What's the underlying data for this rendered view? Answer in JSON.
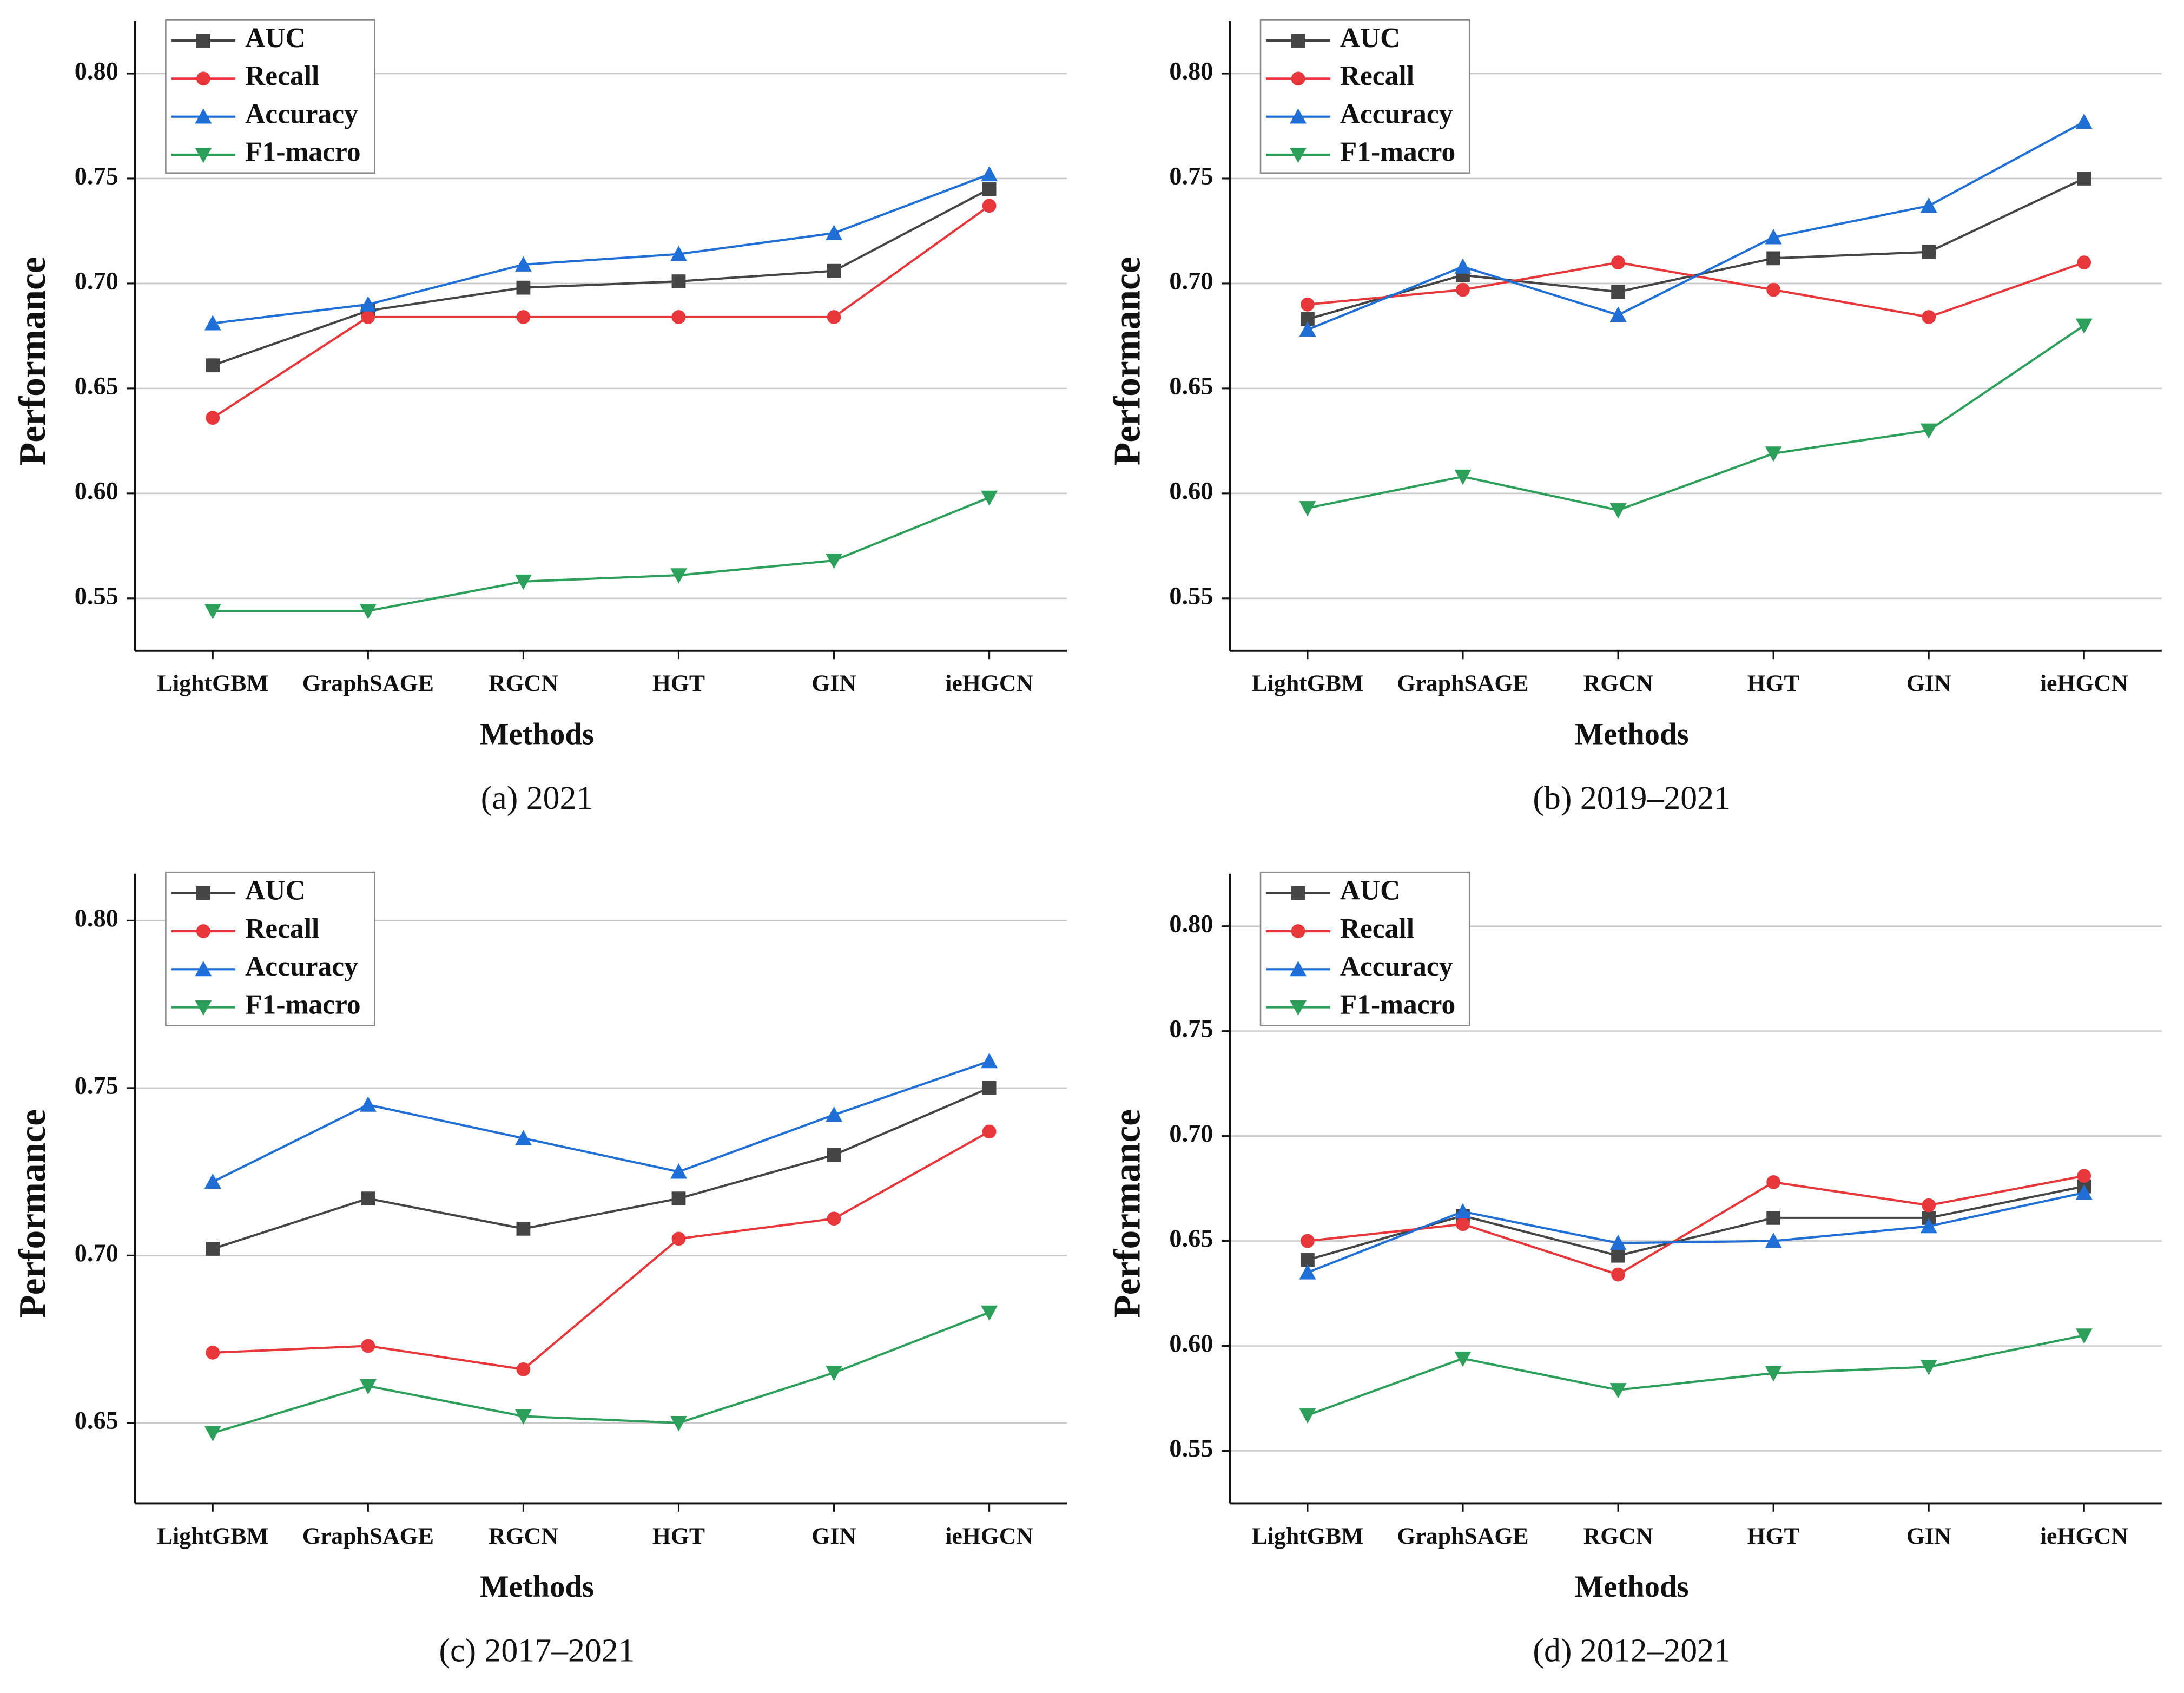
{
  "chart_data": [
    {
      "type": "line",
      "caption": "(a) 2021",
      "xlabel": "Methods",
      "ylabel": "Performance",
      "categories": [
        "LightGBM",
        "GraphSAGE",
        "RGCN",
        "HGT",
        "GIN",
        "ieHGCN"
      ],
      "ylim": [
        0.525,
        0.825
      ],
      "yticks": [
        0.55,
        {
          "value": 0.6,
          "label": "0.60"
        },
        0.65,
        {
          "value": 0.7,
          "label": "0.70"
        },
        0.75,
        {
          "value": 0.8,
          "label": "0.80"
        }
      ],
      "grid": true,
      "legend": "upper left",
      "series": [
        {
          "name": "AUC",
          "color": "#454545",
          "marker": "square",
          "values": [
            0.661,
            0.687,
            0.698,
            0.701,
            0.706,
            0.745
          ]
        },
        {
          "name": "Recall",
          "color": "#e8373a",
          "marker": "circle",
          "values": [
            0.636,
            0.684,
            0.684,
            0.684,
            0.684,
            0.737
          ]
        },
        {
          "name": "Accuracy",
          "color": "#1f6fd6",
          "marker": "triangle-up",
          "values": [
            0.681,
            0.69,
            0.709,
            0.714,
            0.724,
            0.752
          ]
        },
        {
          "name": "F1-macro",
          "color": "#2ca05a",
          "marker": "triangle-down",
          "values": [
            0.544,
            0.544,
            0.558,
            0.561,
            0.568,
            0.598
          ]
        }
      ]
    },
    {
      "type": "line",
      "caption": "(b) 2019–2021",
      "xlabel": "Methods",
      "ylabel": "Performance",
      "categories": [
        "LightGBM",
        "GraphSAGE",
        "RGCN",
        "HGT",
        "GIN",
        "ieHGCN"
      ],
      "ylim": [
        0.525,
        0.825
      ],
      "yticks": [
        0.55,
        {
          "value": 0.6,
          "label": "0.60"
        },
        0.65,
        {
          "value": 0.7,
          "label": "0.70"
        },
        0.75,
        {
          "value": 0.8,
          "label": "0.80"
        }
      ],
      "grid": true,
      "legend": "upper left",
      "series": [
        {
          "name": "AUC",
          "color": "#454545",
          "marker": "square",
          "values": [
            0.683,
            0.704,
            0.696,
            0.712,
            0.715,
            0.75
          ]
        },
        {
          "name": "Recall",
          "color": "#e8373a",
          "marker": "circle",
          "values": [
            0.69,
            0.697,
            0.71,
            0.697,
            0.684,
            0.71
          ]
        },
        {
          "name": "Accuracy",
          "color": "#1f6fd6",
          "marker": "triangle-up",
          "values": [
            0.678,
            0.708,
            0.685,
            0.722,
            0.737,
            0.777
          ]
        },
        {
          "name": "F1-macro",
          "color": "#2ca05a",
          "marker": "triangle-down",
          "values": [
            0.593,
            0.608,
            0.592,
            0.619,
            0.63,
            0.68
          ]
        }
      ]
    },
    {
      "type": "line",
      "caption": "(c) 2017–2021",
      "xlabel": "Methods",
      "ylabel": "Performance",
      "categories": [
        "LightGBM",
        "GraphSAGE",
        "RGCN",
        "HGT",
        "GIN",
        "ieHGCN"
      ],
      "ylim": [
        0.626,
        0.814
      ],
      "yticks": [
        0.65,
        {
          "value": 0.7,
          "label": "0.70"
        },
        0.75,
        {
          "value": 0.8,
          "label": "0.80"
        }
      ],
      "grid": true,
      "legend": "upper left",
      "series": [
        {
          "name": "AUC",
          "color": "#454545",
          "marker": "square",
          "values": [
            0.702,
            0.717,
            0.708,
            0.717,
            0.73,
            0.75
          ]
        },
        {
          "name": "Recall",
          "color": "#e8373a",
          "marker": "circle",
          "values": [
            0.671,
            0.673,
            0.666,
            0.705,
            0.711,
            0.737
          ]
        },
        {
          "name": "Accuracy",
          "color": "#1f6fd6",
          "marker": "triangle-up",
          "values": [
            0.722,
            0.745,
            0.735,
            0.725,
            0.742,
            0.758
          ]
        },
        {
          "name": "F1-macro",
          "color": "#2ca05a",
          "marker": "triangle-down",
          "values": [
            0.647,
            0.661,
            0.652,
            0.65,
            0.665,
            0.683
          ]
        }
      ]
    },
    {
      "type": "line",
      "caption": "(d) 2012–2021",
      "xlabel": "Methods",
      "ylabel": "Performance",
      "categories": [
        "LightGBM",
        "GraphSAGE",
        "RGCN",
        "HGT",
        "GIN",
        "ieHGCN"
      ],
      "ylim": [
        0.525,
        0.825
      ],
      "yticks": [
        0.55,
        {
          "value": 0.6,
          "label": "0.60"
        },
        0.65,
        {
          "value": 0.7,
          "label": "0.70"
        },
        0.75,
        {
          "value": 0.8,
          "label": "0.80"
        }
      ],
      "grid": true,
      "legend": "upper left",
      "series": [
        {
          "name": "AUC",
          "color": "#454545",
          "marker": "square",
          "values": [
            0.641,
            0.662,
            0.643,
            0.661,
            0.661,
            0.676
          ]
        },
        {
          "name": "Recall",
          "color": "#e8373a",
          "marker": "circle",
          "values": [
            0.65,
            0.658,
            0.634,
            0.678,
            0.667,
            0.681
          ]
        },
        {
          "name": "Accuracy",
          "color": "#1f6fd6",
          "marker": "triangle-up",
          "values": [
            0.635,
            0.664,
            0.649,
            0.65,
            0.657,
            0.673
          ]
        },
        {
          "name": "F1-macro",
          "color": "#2ca05a",
          "marker": "triangle-down",
          "values": [
            0.567,
            0.594,
            0.579,
            0.587,
            0.59,
            0.605
          ]
        }
      ]
    }
  ]
}
